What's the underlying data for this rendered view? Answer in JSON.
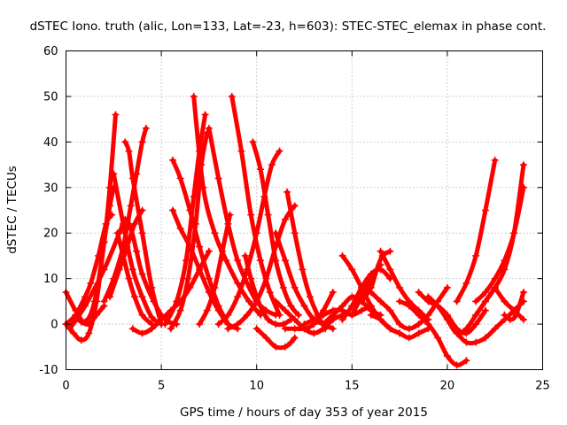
{
  "chart_data": {
    "type": "scatter",
    "title": "dSTEC Iono. truth (alic, Lon=133, Lat=-23, h=603): STEC-STEC_elemax in phase cont.",
    "xlabel": "GPS time / hours of day 353 of year 2015",
    "ylabel": "dSTEC  / TECUs",
    "xlim": [
      0,
      25
    ],
    "ylim": [
      -10,
      60
    ],
    "xticks": [
      "0",
      "5",
      "10",
      "15",
      "20",
      "25"
    ],
    "yticks": [
      "-10",
      "0",
      "10",
      "20",
      "30",
      "40",
      "50",
      "60"
    ],
    "grid": true,
    "marker": "plus",
    "color": "#ff0000",
    "series": [
      {
        "x": [
          0.0,
          0.5,
          1.0,
          1.5,
          2.0,
          2.3,
          2.6
        ],
        "y": [
          7,
          3,
          0.5,
          5,
          18,
          30,
          46
        ]
      },
      {
        "x": [
          0.0,
          0.4,
          0.8,
          1.2,
          1.6,
          2.0,
          2.3,
          2.5
        ],
        "y": [
          0,
          -2,
          -3.5,
          -2,
          5,
          18,
          26,
          30
        ]
      },
      {
        "x": [
          0.0,
          0.5,
          1.0,
          1.3,
          1.7,
          2.1,
          2.4
        ],
        "y": [
          0,
          2,
          6,
          9,
          15,
          22,
          24
        ]
      },
      {
        "x": [
          0.5,
          0.8,
          1.2,
          1.6,
          2.0
        ],
        "y": [
          1.5,
          0.5,
          0,
          2,
          4
        ]
      },
      {
        "x": [
          2.5,
          3.0,
          3.5,
          4.0,
          4.5,
          5.0
        ],
        "y": [
          33,
          22,
          12,
          6,
          1.5,
          0
        ]
      },
      {
        "x": [
          2.7,
          3.0,
          3.3,
          3.6,
          4.0,
          4.5
        ],
        "y": [
          20,
          15,
          10,
          6,
          2,
          0
        ]
      },
      {
        "x": [
          3.1,
          3.3,
          3.5,
          4.0,
          4.5,
          5.0
        ],
        "y": [
          40,
          38,
          32,
          20,
          8,
          0
        ]
      },
      {
        "x": [
          0.2,
          1.0,
          2.0,
          2.8,
          3.1,
          3.4,
          3.7,
          4.0,
          4.6,
          5.2,
          5.8
        ],
        "y": [
          -1,
          4,
          12,
          20,
          23,
          21,
          16,
          11,
          5,
          1,
          0
        ]
      },
      {
        "x": [
          2.0,
          2.5,
          3.0,
          3.4,
          3.7,
          4.0,
          4.2
        ],
        "y": [
          5,
          10,
          17,
          26,
          33,
          40,
          43
        ]
      },
      {
        "x": [
          2.3,
          2.8,
          3.2,
          3.6,
          4.0
        ],
        "y": [
          6,
          12,
          17,
          22,
          25
        ]
      },
      {
        "x": [
          3.5,
          4.0,
          4.5,
          5.0,
          5.5,
          6.0,
          6.5,
          7.0,
          7.5
        ],
        "y": [
          -1,
          -2,
          -1,
          1,
          3,
          5,
          8,
          12,
          16
        ]
      },
      {
        "x": [
          5.2,
          5.8,
          6.3,
          6.7,
          7.0,
          7.3
        ],
        "y": [
          0,
          5,
          14,
          28,
          38,
          46
        ]
      },
      {
        "x": [
          5.5,
          6.0,
          6.4,
          6.8,
          7.1,
          7.4
        ],
        "y": [
          -1,
          3,
          10,
          22,
          35,
          42
        ]
      },
      {
        "x": [
          6.7,
          7.2,
          7.8,
          8.4,
          9.0,
          9.6,
          10.2
        ],
        "y": [
          50,
          30,
          20,
          14,
          9,
          5,
          2
        ]
      },
      {
        "x": [
          5.6,
          6.0,
          6.5,
          7.0,
          7.5,
          8.0,
          8.5
        ],
        "y": [
          36,
          32,
          25,
          17,
          10,
          4,
          0
        ]
      },
      {
        "x": [
          5.6,
          6.0,
          6.5,
          7.0,
          7.5,
          8.0,
          8.5,
          9.0
        ],
        "y": [
          25,
          21,
          17,
          12,
          7,
          3,
          0,
          -1
        ]
      },
      {
        "x": [
          7.0,
          7.4,
          7.8,
          8.2,
          8.6
        ],
        "y": [
          0,
          3,
          8,
          16,
          24
        ]
      },
      {
        "x": [
          7.5,
          8.0,
          8.5,
          9.0,
          9.5,
          10.0,
          10.5,
          11.0
        ],
        "y": [
          43,
          32,
          22,
          14,
          9,
          5,
          3,
          2
        ]
      },
      {
        "x": [
          8.7,
          9.2,
          9.7,
          10.2,
          10.7,
          11.2
        ],
        "y": [
          50,
          38,
          24,
          14,
          7,
          2
        ]
      },
      {
        "x": [
          9.8,
          10.2,
          10.6,
          11.0,
          11.4,
          11.8,
          12.2
        ],
        "y": [
          40,
          34,
          24,
          14,
          8,
          4,
          2
        ]
      },
      {
        "x": [
          9.4,
          9.7,
          10.0,
          10.3,
          10.6,
          11.0,
          11.4,
          11.8
        ],
        "y": [
          15,
          10,
          6,
          3,
          1,
          0,
          0,
          1
        ]
      },
      {
        "x": [
          8.0,
          8.5,
          9.0,
          9.5,
          10.0,
          10.4,
          10.8,
          11.2
        ],
        "y": [
          0,
          2,
          6,
          12,
          20,
          28,
          35,
          38
        ]
      },
      {
        "x": [
          8.5,
          9.0,
          9.5,
          10.0,
          10.5,
          11.0,
          11.5,
          12.0
        ],
        "y": [
          -1,
          0,
          2,
          5,
          10,
          17,
          23,
          26
        ]
      },
      {
        "x": [
          10.0,
          10.5,
          11.0,
          11.5,
          11.8,
          12.0
        ],
        "y": [
          -1,
          -3,
          -5,
          -5,
          -4,
          -3
        ]
      },
      {
        "x": [
          11.6,
          12.0,
          12.4,
          12.8,
          13.2,
          13.6
        ],
        "y": [
          29,
          20,
          12,
          6,
          2,
          -1
        ]
      },
      {
        "x": [
          11.0,
          11.5,
          12.0,
          12.5,
          13.0,
          13.5,
          14.0
        ],
        "y": [
          20,
          14,
          8,
          4,
          1,
          0,
          -1
        ]
      },
      {
        "x": [
          11.5,
          12.0,
          12.5,
          13.0,
          13.5,
          14.0
        ],
        "y": [
          -1,
          -1,
          -1,
          0,
          3,
          7
        ]
      },
      {
        "x": [
          11.0,
          11.5,
          12.0,
          12.5,
          13.0,
          13.5,
          14.0,
          14.5
        ],
        "y": [
          5,
          3,
          1,
          -1,
          -2,
          -1,
          1,
          2
        ]
      },
      {
        "x": [
          12.5,
          13.0,
          13.5,
          14.0,
          14.5,
          15.0,
          15.5,
          16.0
        ],
        "y": [
          0,
          1,
          2,
          3,
          3,
          2,
          3,
          4
        ]
      },
      {
        "x": [
          13.5,
          14.0,
          14.5,
          15.0,
          15.5,
          16.0,
          16.5
        ],
        "y": [
          0,
          2,
          4,
          6,
          5,
          3,
          2
        ]
      },
      {
        "x": [
          14.5,
          15.0,
          15.5,
          16.0,
          16.5,
          17.0,
          17.5
        ],
        "y": [
          15,
          12,
          8,
          4,
          1,
          -1,
          -2
        ]
      },
      {
        "x": [
          15.0,
          15.5,
          16.0,
          16.5
        ],
        "y": [
          2,
          6,
          10,
          13
        ]
      },
      {
        "x": [
          14.5,
          15.0,
          15.5,
          16.0,
          16.5,
          17.0
        ],
        "y": [
          1,
          4,
          8,
          11,
          12,
          10
        ]
      },
      {
        "x": [
          15.5,
          16.0,
          16.3,
          16.6,
          17.0
        ],
        "y": [
          5,
          8,
          12,
          15,
          16
        ]
      },
      {
        "x": [
          16.5,
          17.0,
          17.5,
          18.0,
          18.5,
          19.0
        ],
        "y": [
          16,
          12,
          8,
          5,
          3,
          1
        ]
      },
      {
        "x": [
          16.0,
          16.5,
          17.0,
          17.5,
          18.0,
          18.5,
          19.0,
          19.5,
          20.0
        ],
        "y": [
          7,
          5,
          3,
          0,
          -1,
          0,
          2,
          5,
          8
        ]
      },
      {
        "x": [
          16.0,
          16.5,
          17.0,
          17.5,
          18.0,
          18.5,
          19.0
        ],
        "y": [
          2,
          1,
          -1,
          -2,
          -3,
          -2,
          -1
        ]
      },
      {
        "x": [
          17.5,
          18.0,
          18.5,
          19.0,
          19.5,
          20.0,
          20.5,
          21.0
        ],
        "y": [
          5,
          4,
          2,
          0,
          -3,
          -7,
          -9,
          -8
        ]
      },
      {
        "x": [
          18.5,
          19.0,
          19.5,
          20.0,
          20.5,
          21.0,
          21.5,
          22.0
        ],
        "y": [
          7,
          5,
          4,
          2,
          -1,
          -2,
          0,
          3
        ]
      },
      {
        "x": [
          19.0,
          19.5,
          20.0,
          20.5,
          21.0,
          21.5,
          22.0,
          22.5
        ],
        "y": [
          6,
          4,
          1,
          -2,
          -1,
          2,
          5,
          8
        ]
      },
      {
        "x": [
          20.5,
          21.0,
          21.5,
          22.0,
          22.5,
          23.0,
          23.5,
          24.0
        ],
        "y": [
          -2,
          -4,
          -4,
          -3,
          -1,
          1,
          3,
          5
        ]
      },
      {
        "x": [
          20.5,
          21.0,
          21.5,
          22.0,
          22.5
        ],
        "y": [
          5,
          9,
          15,
          25,
          36
        ]
      },
      {
        "x": [
          21.5,
          22.0,
          22.5,
          23.0,
          23.5,
          24.0
        ],
        "y": [
          2,
          5,
          8,
          12,
          20,
          35
        ]
      },
      {
        "x": [
          21.5,
          22.0,
          22.5,
          23.0,
          23.5,
          24.0
        ],
        "y": [
          5,
          7,
          10,
          14,
          20,
          30
        ]
      },
      {
        "x": [
          22.5,
          23.0,
          23.5,
          24.0
        ],
        "y": [
          8,
          5,
          3,
          1
        ]
      },
      {
        "x": [
          23.0,
          23.3,
          23.6,
          24.0
        ],
        "y": [
          2,
          1,
          2,
          7
        ]
      }
    ]
  }
}
